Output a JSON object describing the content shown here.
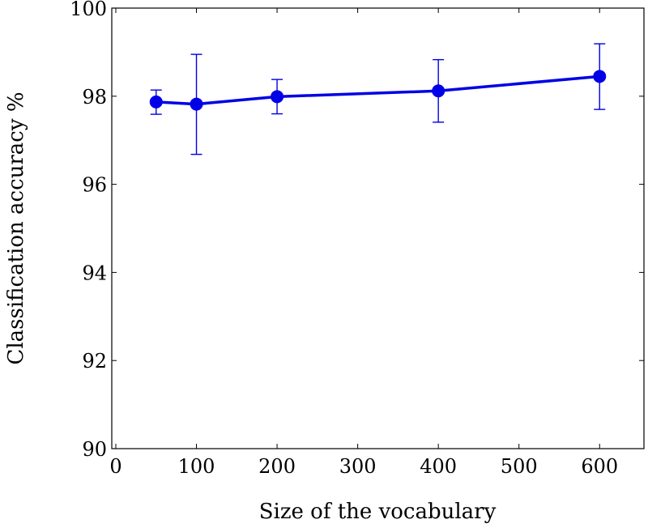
{
  "chart_data": {
    "type": "line",
    "title": "",
    "xlabel": "Size of the vocabulary",
    "ylabel": "Classification accuracy %",
    "xlim": [
      -5,
      655
    ],
    "ylim": [
      90,
      100
    ],
    "xticks": [
      0,
      100,
      200,
      300,
      400,
      500,
      600
    ],
    "yticks": [
      90,
      92,
      94,
      96,
      98,
      100
    ],
    "grid": false,
    "legend": "none",
    "series": [
      {
        "color": "#0000e6",
        "marker": "circle",
        "points": [
          {
            "x": 50,
            "y": 97.87,
            "err_low": 97.59,
            "err_high": 98.14
          },
          {
            "x": 100,
            "y": 97.82,
            "err_low": 96.68,
            "err_high": 98.95
          },
          {
            "x": 200,
            "y": 97.99,
            "err_low": 97.6,
            "err_high": 98.38
          },
          {
            "x": 400,
            "y": 98.12,
            "err_low": 97.41,
            "err_high": 98.83
          },
          {
            "x": 600,
            "y": 98.45,
            "err_low": 97.7,
            "err_high": 99.19
          }
        ]
      }
    ]
  }
}
